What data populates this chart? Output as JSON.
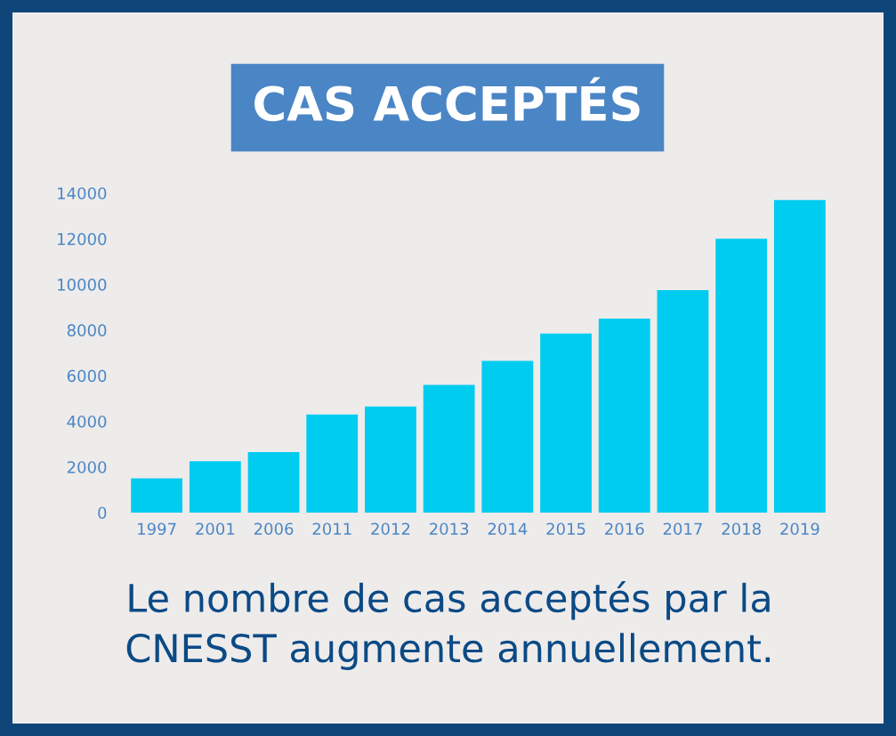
{
  "chart_data": {
    "type": "bar",
    "title": "CAS ACCEPTÉS",
    "categories": [
      "1997",
      "2001",
      "2006",
      "2011",
      "2012",
      "2013",
      "2014",
      "2015",
      "2016",
      "2017",
      "2018",
      "2019"
    ],
    "values": [
      1500,
      2250,
      2650,
      4300,
      4650,
      5600,
      6650,
      7850,
      8500,
      9750,
      12000,
      13700
    ],
    "color": "#00ccf0",
    "ylim": [
      0,
      14000
    ],
    "yticks": [
      0,
      2000,
      4000,
      6000,
      8000,
      10000,
      12000,
      14000
    ],
    "grid": false,
    "annotations": [
      "Le nombre de cas acceptés par la\nCNESST augmente annuellement."
    ]
  }
}
